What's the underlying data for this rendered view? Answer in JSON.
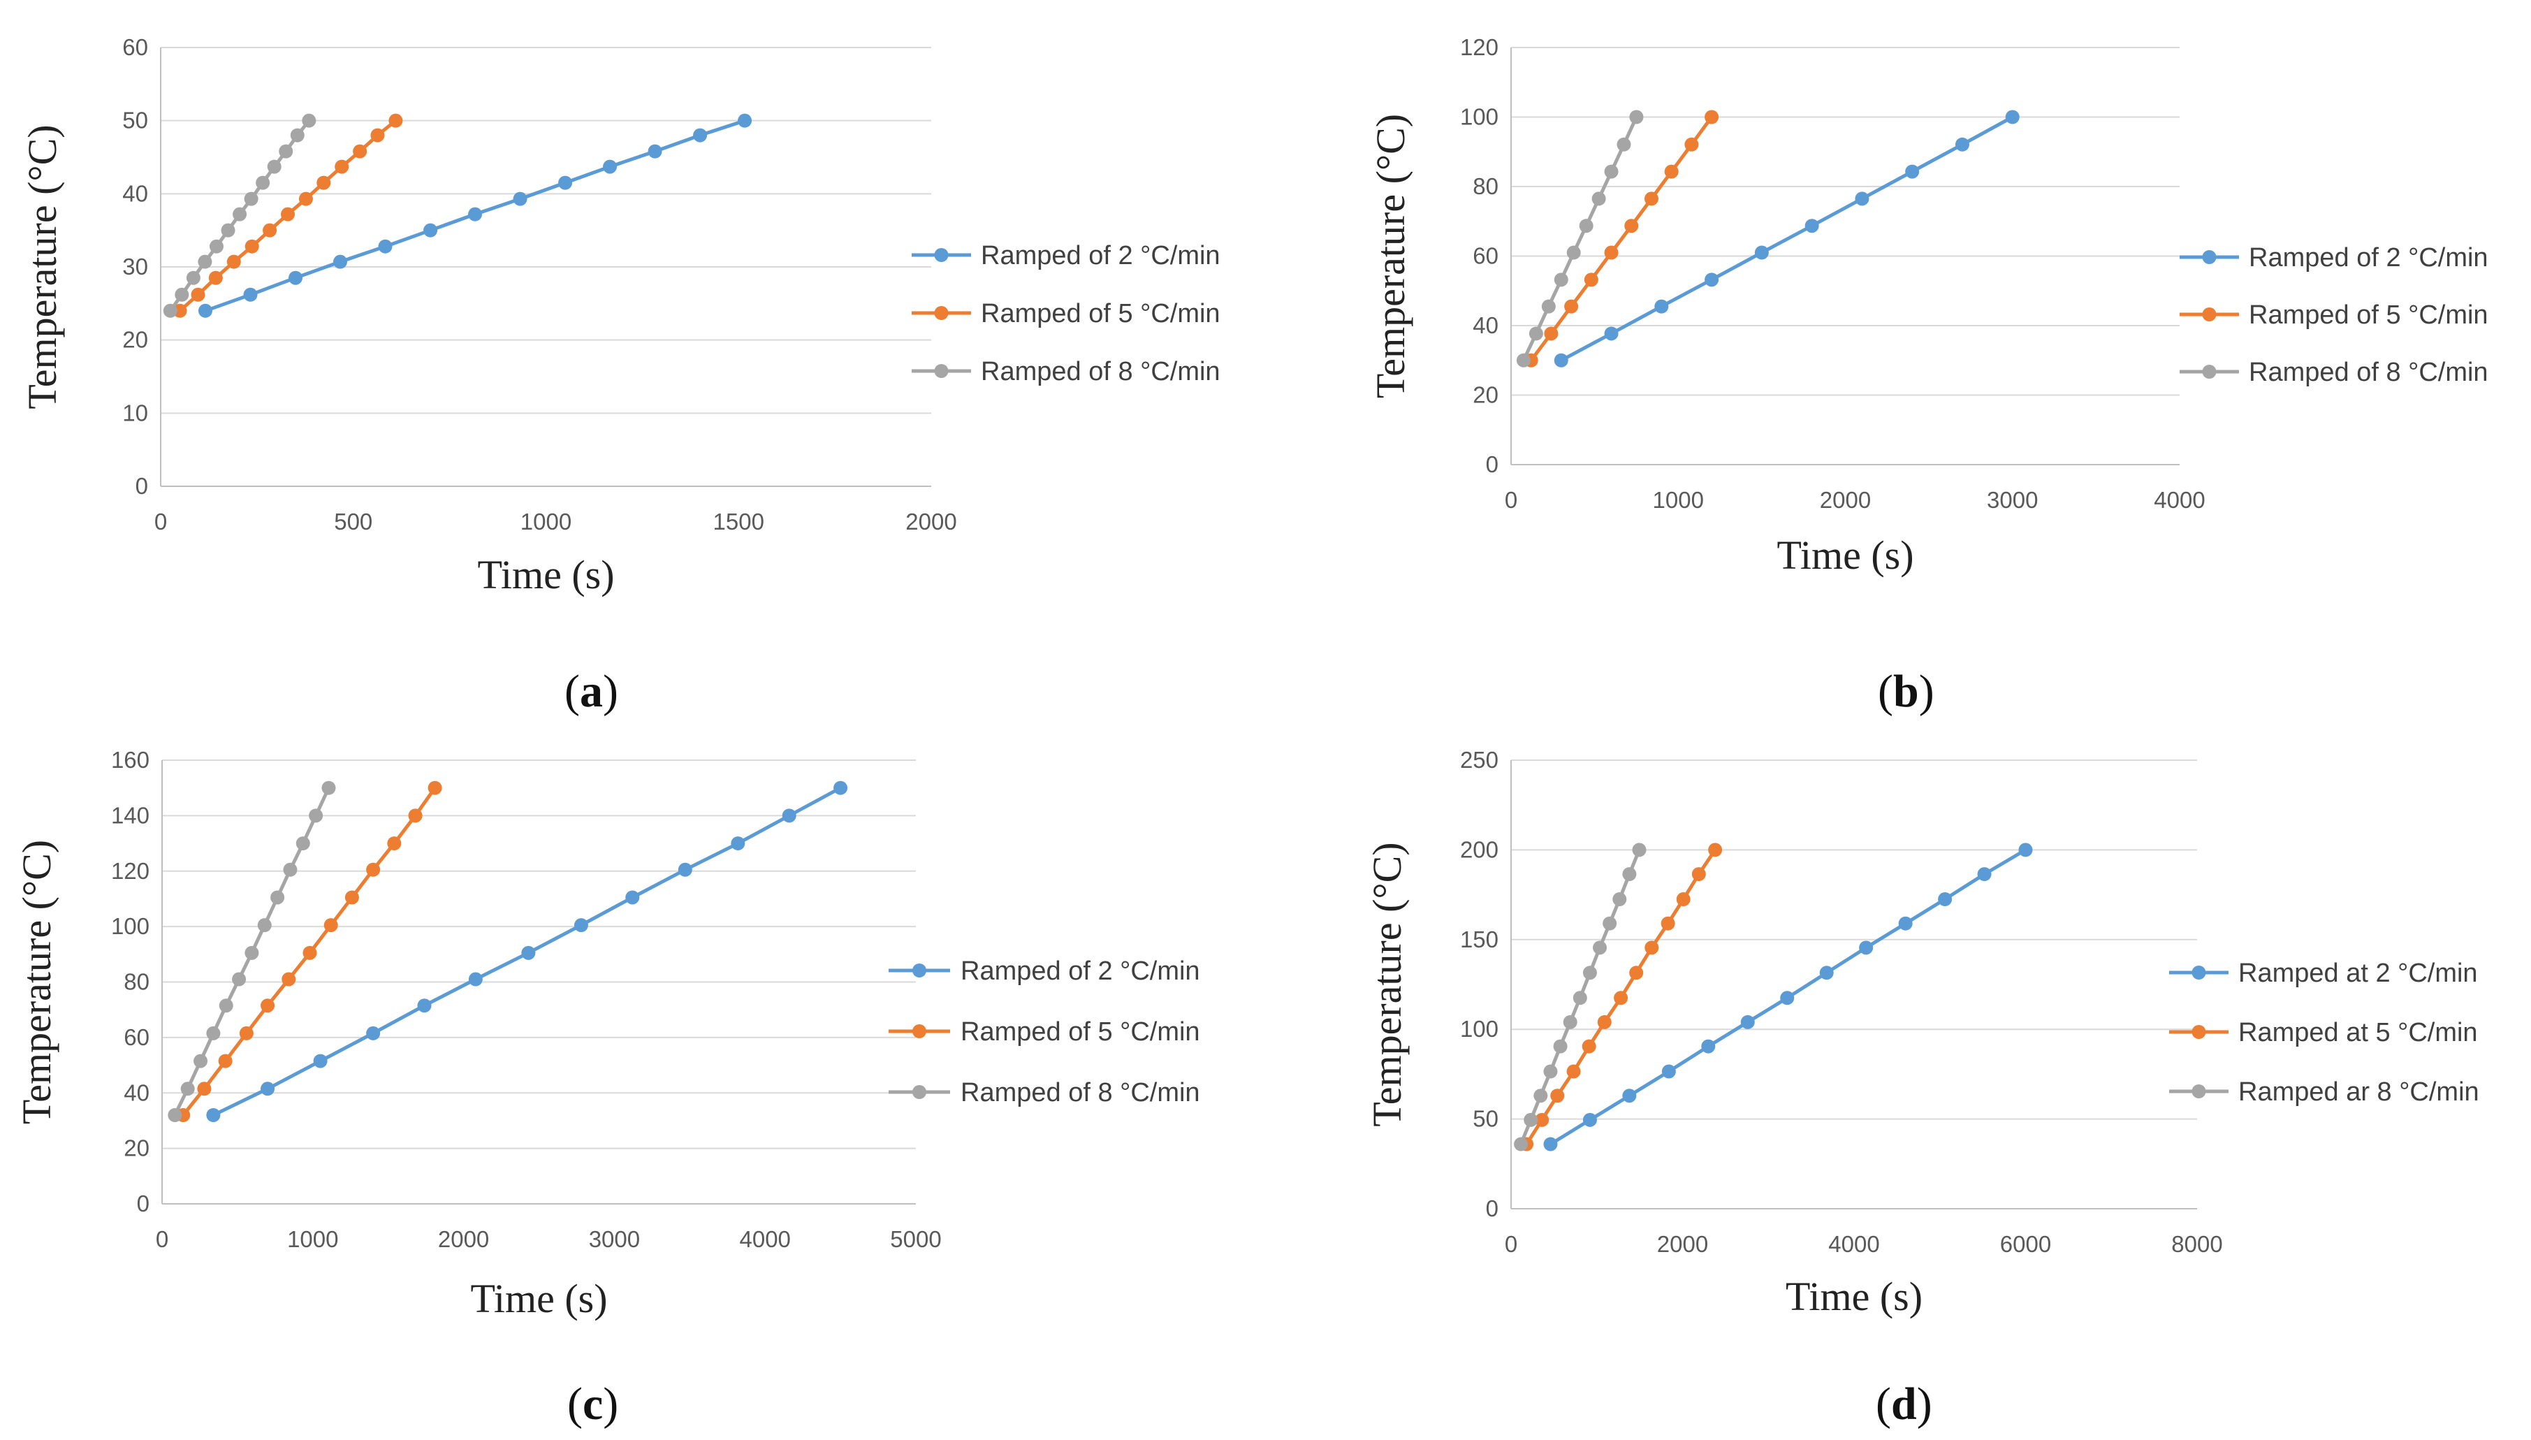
{
  "chart_data": [
    {
      "type": "line",
      "panel_label": "a",
      "xlabel": "Time (s)",
      "ylabel": "Temperature (°C)",
      "xlim": [
        0,
        2000
      ],
      "ylim": [
        0,
        60
      ],
      "xticks": [
        0,
        500,
        1000,
        1500,
        2000
      ],
      "yticks": [
        0,
        10,
        20,
        30,
        40,
        50,
        60
      ],
      "legend_position": "right",
      "series": [
        {
          "name": "Ramped of 2 °C/min",
          "color": "#5b9bd5",
          "x": [
            116,
            233,
            350,
            466,
            583,
            700,
            816,
            933,
            1050,
            1166,
            1283,
            1400,
            1516
          ],
          "y": [
            24,
            26.2,
            28.5,
            30.7,
            32.8,
            35,
            37.2,
            39.3,
            41.5,
            43.7,
            45.8,
            48,
            50
          ]
        },
        {
          "name": "Ramped of 5 °C/min",
          "color": "#ed7d31",
          "x": [
            50,
            97,
            143,
            190,
            237,
            283,
            330,
            377,
            423,
            470,
            517,
            563,
            610
          ],
          "y": [
            24,
            26.2,
            28.5,
            30.7,
            32.8,
            35,
            37.2,
            39.3,
            41.5,
            43.7,
            45.8,
            48,
            50
          ]
        },
        {
          "name": "Ramped of 8 °C/min",
          "color": "#a5a5a5",
          "x": [
            25,
            55,
            85,
            115,
            145,
            175,
            205,
            235,
            265,
            295,
            325,
            355,
            385
          ],
          "y": [
            24,
            26.2,
            28.5,
            30.7,
            32.8,
            35,
            37.2,
            39.3,
            41.5,
            43.7,
            45.8,
            48,
            50
          ]
        }
      ]
    },
    {
      "type": "line",
      "panel_label": "b",
      "xlabel": "Time (s)",
      "ylabel": "Temperature (°C)",
      "xlim": [
        0,
        4000
      ],
      "ylim": [
        0,
        120
      ],
      "xticks": [
        0,
        1000,
        2000,
        3000,
        4000
      ],
      "yticks": [
        0,
        20,
        40,
        60,
        80,
        100,
        120
      ],
      "legend_position": "right",
      "series": [
        {
          "name": "Ramped of 2 °C/min",
          "color": "#5b9bd5",
          "x": [
            300,
            600,
            900,
            1200,
            1500,
            1800,
            2100,
            2400,
            2700,
            3000
          ],
          "y": [
            30,
            37.7,
            45.5,
            53.2,
            61,
            68.7,
            76.5,
            84.3,
            92.1,
            100
          ]
        },
        {
          "name": "Ramped of 5 °C/min",
          "color": "#ed7d31",
          "x": [
            120,
            240,
            360,
            480,
            600,
            720,
            840,
            960,
            1080,
            1200
          ],
          "y": [
            30,
            37.7,
            45.5,
            53.2,
            61,
            68.7,
            76.5,
            84.3,
            92.1,
            100
          ]
        },
        {
          "name": "Ramped of 8 °C/min",
          "color": "#a5a5a5",
          "x": [
            75,
            150,
            225,
            300,
            375,
            450,
            525,
            600,
            675,
            750
          ],
          "y": [
            30,
            37.7,
            45.5,
            53.2,
            61,
            68.7,
            76.5,
            84.3,
            92.1,
            100
          ]
        }
      ]
    },
    {
      "type": "line",
      "panel_label": "c",
      "xlabel": "Time (s)",
      "ylabel": "Temperature (°C)",
      "xlim": [
        0,
        5000
      ],
      "ylim": [
        0,
        160
      ],
      "xticks": [
        0,
        1000,
        2000,
        3000,
        4000,
        5000
      ],
      "yticks": [
        0,
        20,
        40,
        60,
        80,
        100,
        120,
        140,
        160
      ],
      "legend_position": "right",
      "series": [
        {
          "name": "Ramped of 2 °C/min",
          "color": "#5b9bd5",
          "x": [
            340,
            700,
            1050,
            1400,
            1740,
            2080,
            2430,
            2780,
            3120,
            3470,
            3820,
            4160,
            4500
          ],
          "y": [
            32,
            41.5,
            51.5,
            61.5,
            71.5,
            81,
            90.5,
            100.5,
            110.5,
            120.5,
            130,
            140,
            150
          ]
        },
        {
          "name": "Ramped of 5 °C/min",
          "color": "#ed7d31",
          "x": [
            140,
            280,
            420,
            560,
            700,
            840,
            980,
            1120,
            1260,
            1400,
            1540,
            1680,
            1810
          ],
          "y": [
            32,
            41.5,
            51.5,
            61.5,
            71.5,
            81,
            90.5,
            100.5,
            110.5,
            120.5,
            130,
            140,
            150
          ]
        },
        {
          "name": "Ramped of 8 °C/min",
          "color": "#a5a5a5",
          "x": [
            85,
            170,
            255,
            340,
            425,
            510,
            595,
            680,
            765,
            850,
            935,
            1020,
            1105
          ],
          "y": [
            32,
            41.5,
            51.5,
            61.5,
            71.5,
            81,
            90.5,
            100.5,
            110.5,
            120.5,
            130,
            140,
            150
          ]
        }
      ]
    },
    {
      "type": "line",
      "panel_label": "d",
      "xlabel": "Time (s)",
      "ylabel": "Temperature (°C)",
      "xlim": [
        0,
        8000
      ],
      "ylim": [
        0,
        250
      ],
      "xticks": [
        0,
        2000,
        4000,
        6000,
        8000
      ],
      "yticks": [
        0,
        50,
        100,
        150,
        200,
        250
      ],
      "legend_position": "right",
      "series": [
        {
          "name": "Ramped at 2 °C/min",
          "color": "#5b9bd5",
          "x": [
            460,
            920,
            1380,
            1840,
            2300,
            2760,
            3220,
            3680,
            4140,
            4600,
            5060,
            5520,
            6000
          ],
          "y": [
            36,
            49.5,
            63,
            76.5,
            90.5,
            104,
            117.5,
            131.5,
            145.5,
            159,
            172.5,
            186.5,
            200
          ]
        },
        {
          "name": "Ramped at 5 °C/min",
          "color": "#ed7d31",
          "x": [
            180,
            360,
            540,
            730,
            910,
            1090,
            1280,
            1460,
            1640,
            1830,
            2010,
            2190,
            2380
          ],
          "y": [
            36,
            49.5,
            63,
            76.5,
            90.5,
            104,
            117.5,
            131.5,
            145.5,
            159,
            172.5,
            186.5,
            200
          ]
        },
        {
          "name": "Ramped ar 8 °C/min",
          "color": "#a5a5a5",
          "x": [
            115,
            230,
            345,
            460,
            575,
            690,
            805,
            920,
            1035,
            1150,
            1265,
            1380,
            1495
          ],
          "y": [
            36,
            49.5,
            63,
            76.5,
            90.5,
            104,
            117.5,
            131.5,
            145.5,
            159,
            172.5,
            186.5,
            200
          ]
        }
      ]
    }
  ]
}
